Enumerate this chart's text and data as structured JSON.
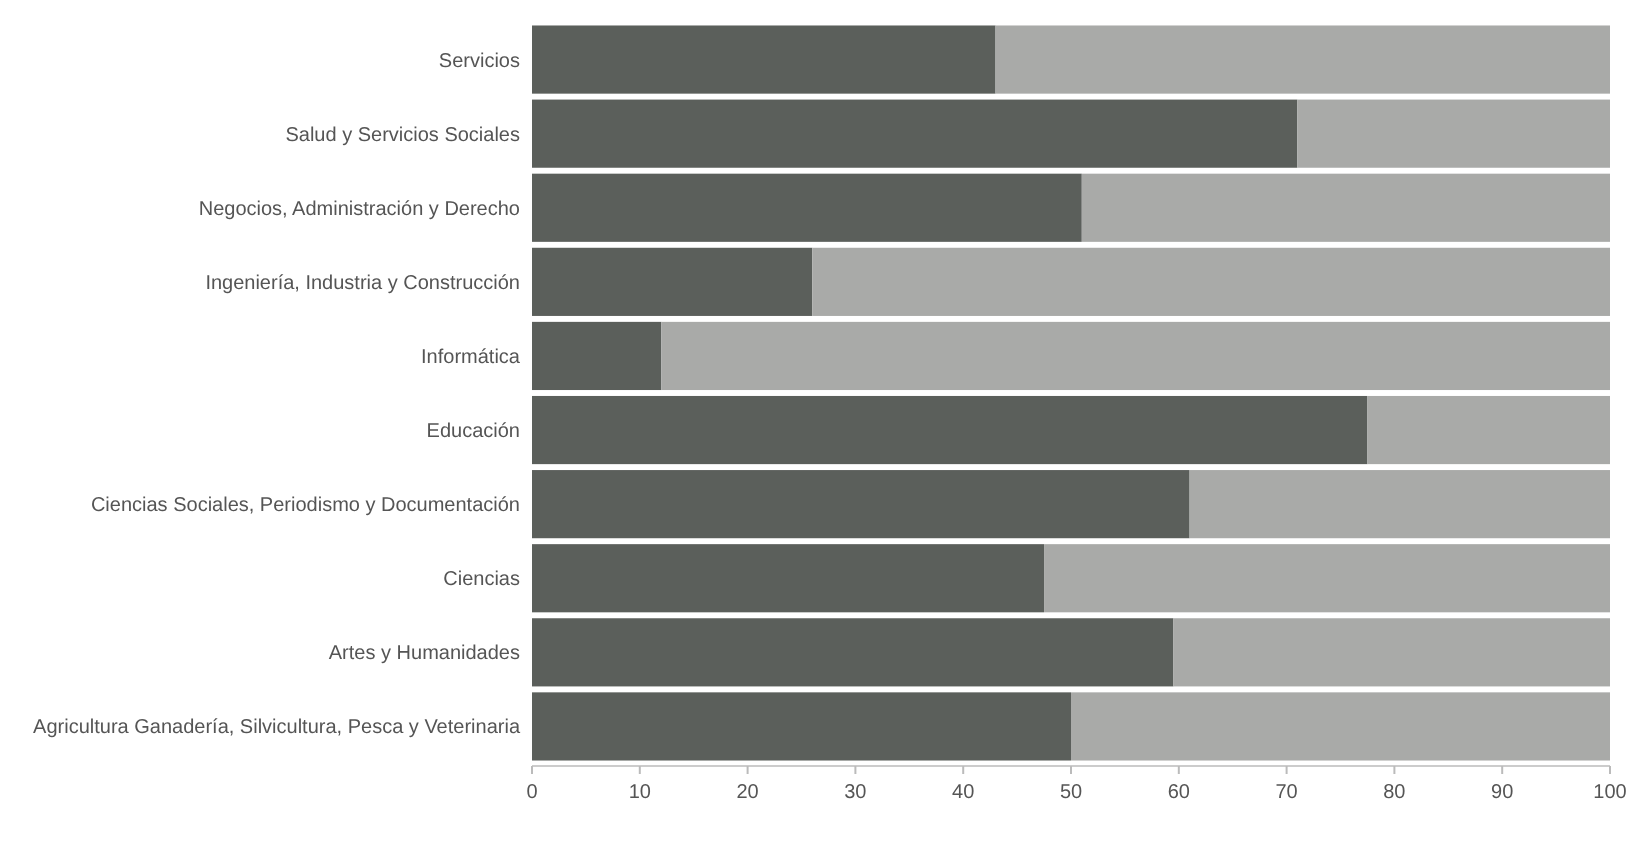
{
  "chart_data": {
    "type": "bar",
    "orientation": "horizontal",
    "stacked": true,
    "categories": [
      "Servicios",
      "Salud y Servicios Sociales",
      "Negocios, Administración y Derecho",
      "Ingeniería, Industria y Construcción",
      "Informática",
      "Educación",
      "Ciencias Sociales, Periodismo y Documentación",
      "Ciencias",
      "Artes y Humanidades",
      "Agricultura Ganadería, Silvicultura, Pesca y Veterinaria"
    ],
    "series": [
      {
        "color": "#5b5f5b",
        "values": [
          43,
          71,
          51,
          26,
          12,
          77.5,
          61,
          47.5,
          59.5,
          50
        ]
      },
      {
        "color": "#a9aaa8",
        "values": [
          57,
          29,
          49,
          74,
          88,
          22.5,
          39,
          52.5,
          40.5,
          50
        ]
      }
    ],
    "xlim": [
      0,
      100
    ],
    "xticks": [
      0,
      10,
      20,
      30,
      40,
      50,
      60,
      70,
      80,
      90,
      100
    ]
  }
}
